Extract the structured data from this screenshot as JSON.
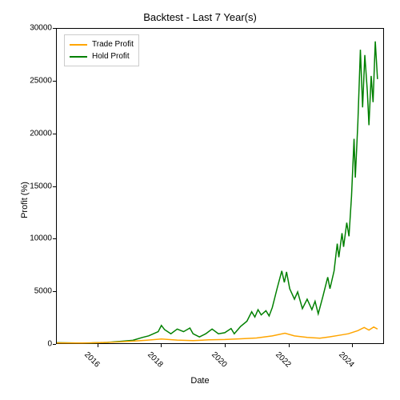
{
  "title": "Backtest - Last 7 Year(s)",
  "title_fontsize": 13,
  "xlabel": "Date",
  "ylabel": "Profit (%)",
  "label_fontsize": 11,
  "tick_fontsize": 10,
  "background_color": "#ffffff",
  "border_color": "#000000",
  "legend": {
    "position": "upper-left",
    "border_color": "#cccccc",
    "items": [
      {
        "label": "Trade Profit",
        "color": "#ffa500"
      },
      {
        "label": "Hold Profit",
        "color": "#008000"
      }
    ]
  },
  "x_axis": {
    "min_year": 2014.7,
    "max_year": 2025.0,
    "ticks": [
      2016,
      2018,
      2020,
      2022,
      2024
    ],
    "tick_rotation": 45
  },
  "y_axis": {
    "min": 0,
    "max": 30000,
    "ticks": [
      0,
      5000,
      10000,
      15000,
      20000,
      25000,
      30000
    ],
    "scale": "linear"
  },
  "series": [
    {
      "name": "Hold Profit",
      "color": "#008000",
      "line_width": 1.5,
      "data": [
        {
          "x": 2014.7,
          "y": 50
        },
        {
          "x": 2015.3,
          "y": 20
        },
        {
          "x": 2015.8,
          "y": 30
        },
        {
          "x": 2016.3,
          "y": 80
        },
        {
          "x": 2016.8,
          "y": 200
        },
        {
          "x": 2017.1,
          "y": 280
        },
        {
          "x": 2017.4,
          "y": 550
        },
        {
          "x": 2017.6,
          "y": 700
        },
        {
          "x": 2017.9,
          "y": 1100
        },
        {
          "x": 2018.0,
          "y": 1700
        },
        {
          "x": 2018.1,
          "y": 1300
        },
        {
          "x": 2018.3,
          "y": 900
        },
        {
          "x": 2018.5,
          "y": 1350
        },
        {
          "x": 2018.7,
          "y": 1100
        },
        {
          "x": 2018.9,
          "y": 1450
        },
        {
          "x": 2019.0,
          "y": 900
        },
        {
          "x": 2019.2,
          "y": 600
        },
        {
          "x": 2019.4,
          "y": 900
        },
        {
          "x": 2019.6,
          "y": 1350
        },
        {
          "x": 2019.8,
          "y": 900
        },
        {
          "x": 2020.0,
          "y": 1000
        },
        {
          "x": 2020.2,
          "y": 1400
        },
        {
          "x": 2020.3,
          "y": 900
        },
        {
          "x": 2020.5,
          "y": 1600
        },
        {
          "x": 2020.7,
          "y": 2100
        },
        {
          "x": 2020.85,
          "y": 3000
        },
        {
          "x": 2020.95,
          "y": 2500
        },
        {
          "x": 2021.05,
          "y": 3200
        },
        {
          "x": 2021.15,
          "y": 2700
        },
        {
          "x": 2021.3,
          "y": 3100
        },
        {
          "x": 2021.4,
          "y": 2600
        },
        {
          "x": 2021.5,
          "y": 3400
        },
        {
          "x": 2021.65,
          "y": 5200
        },
        {
          "x": 2021.8,
          "y": 6900
        },
        {
          "x": 2021.88,
          "y": 5800
        },
        {
          "x": 2021.95,
          "y": 6800
        },
        {
          "x": 2022.05,
          "y": 5200
        },
        {
          "x": 2022.2,
          "y": 4200
        },
        {
          "x": 2022.3,
          "y": 4900
        },
        {
          "x": 2022.45,
          "y": 3300
        },
        {
          "x": 2022.6,
          "y": 4200
        },
        {
          "x": 2022.75,
          "y": 3200
        },
        {
          "x": 2022.85,
          "y": 4000
        },
        {
          "x": 2022.95,
          "y": 2800
        },
        {
          "x": 2023.1,
          "y": 4500
        },
        {
          "x": 2023.25,
          "y": 6300
        },
        {
          "x": 2023.32,
          "y": 5200
        },
        {
          "x": 2023.45,
          "y": 6900
        },
        {
          "x": 2023.55,
          "y": 9500
        },
        {
          "x": 2023.6,
          "y": 8200
        },
        {
          "x": 2023.7,
          "y": 10500
        },
        {
          "x": 2023.75,
          "y": 9200
        },
        {
          "x": 2023.85,
          "y": 11500
        },
        {
          "x": 2023.92,
          "y": 10200
        },
        {
          "x": 2024.0,
          "y": 14000
        },
        {
          "x": 2024.08,
          "y": 19500
        },
        {
          "x": 2024.12,
          "y": 15800
        },
        {
          "x": 2024.2,
          "y": 21000
        },
        {
          "x": 2024.28,
          "y": 28000
        },
        {
          "x": 2024.35,
          "y": 22500
        },
        {
          "x": 2024.42,
          "y": 27500
        },
        {
          "x": 2024.5,
          "y": 24000
        },
        {
          "x": 2024.55,
          "y": 20800
        },
        {
          "x": 2024.62,
          "y": 25500
        },
        {
          "x": 2024.68,
          "y": 23000
        },
        {
          "x": 2024.75,
          "y": 28800
        },
        {
          "x": 2024.82,
          "y": 25200
        }
      ]
    },
    {
      "name": "Trade Profit",
      "color": "#ffa500",
      "line_width": 1.5,
      "data": [
        {
          "x": 2014.7,
          "y": 30
        },
        {
          "x": 2015.5,
          "y": 20
        },
        {
          "x": 2016.0,
          "y": 50
        },
        {
          "x": 2016.5,
          "y": 100
        },
        {
          "x": 2017.0,
          "y": 180
        },
        {
          "x": 2017.5,
          "y": 280
        },
        {
          "x": 2018.0,
          "y": 400
        },
        {
          "x": 2018.5,
          "y": 300
        },
        {
          "x": 2019.0,
          "y": 250
        },
        {
          "x": 2019.5,
          "y": 320
        },
        {
          "x": 2020.0,
          "y": 350
        },
        {
          "x": 2020.5,
          "y": 420
        },
        {
          "x": 2021.0,
          "y": 500
        },
        {
          "x": 2021.5,
          "y": 700
        },
        {
          "x": 2021.9,
          "y": 950
        },
        {
          "x": 2022.2,
          "y": 700
        },
        {
          "x": 2022.6,
          "y": 550
        },
        {
          "x": 2023.0,
          "y": 480
        },
        {
          "x": 2023.3,
          "y": 600
        },
        {
          "x": 2023.6,
          "y": 750
        },
        {
          "x": 2023.9,
          "y": 900
        },
        {
          "x": 2024.2,
          "y": 1200
        },
        {
          "x": 2024.4,
          "y": 1500
        },
        {
          "x": 2024.55,
          "y": 1250
        },
        {
          "x": 2024.7,
          "y": 1550
        },
        {
          "x": 2024.82,
          "y": 1350
        }
      ]
    }
  ]
}
